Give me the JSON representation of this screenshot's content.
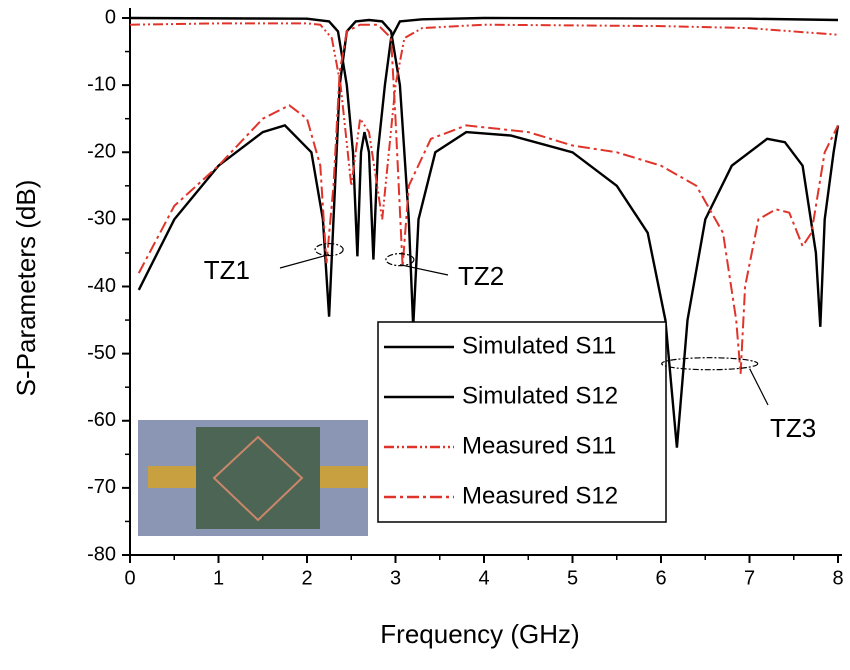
{
  "chart_data": {
    "type": "line",
    "xlabel": "Frequency (GHz)",
    "ylabel": "S-Parameters (dB)",
    "xlim": [
      0,
      8
    ],
    "xticks": [
      0,
      1,
      2,
      3,
      4,
      5,
      6,
      7,
      8
    ],
    "ylim": [
      -80,
      0
    ],
    "yticks": [
      0,
      -10,
      -20,
      -30,
      -40,
      -50,
      -60,
      -70,
      -80
    ],
    "series": [
      {
        "name": "Simulated S11",
        "color": "#000000",
        "dash": "solid",
        "x": [
          0,
          2,
          2.25,
          2.35,
          2.45,
          2.52,
          2.57,
          2.61,
          2.65,
          2.7,
          2.75,
          2.8,
          2.88,
          2.95,
          3.05,
          3.3,
          4,
          7,
          8
        ],
        "values": [
          0,
          -0.1,
          -0.5,
          -2,
          -10,
          -20,
          -35.5,
          -20,
          -17,
          -20,
          -36,
          -20,
          -10,
          -3,
          -0.5,
          -0.2,
          0,
          -0.1,
          -0.3
        ]
      },
      {
        "name": "Simulated S12",
        "color": "#000000",
        "dash": "solid",
        "x": [
          0.1,
          0.5,
          1,
          1.5,
          1.75,
          2.05,
          2.18,
          2.25,
          2.3,
          2.37,
          2.45,
          2.55,
          2.7,
          2.85,
          2.95,
          3.05,
          3.15,
          3.2,
          3.26,
          3.45,
          3.8,
          4.3,
          5,
          5.5,
          5.85,
          6.05,
          6.18,
          6.3,
          6.5,
          6.8,
          7.2,
          7.4,
          7.6,
          7.75,
          7.8,
          7.85,
          7.95,
          8
        ],
        "values": [
          -40.5,
          -30,
          -22,
          -17,
          -16,
          -20,
          -30,
          -44.5,
          -30,
          -10,
          -2,
          -0.5,
          -0.3,
          -0.5,
          -2,
          -10,
          -30,
          -46,
          -30,
          -20,
          -17,
          -17.5,
          -20,
          -25,
          -32,
          -45,
          -64,
          -45,
          -30,
          -22,
          -18,
          -18.5,
          -22,
          -35,
          -46,
          -30,
          -20,
          -16
        ]
      },
      {
        "name": "Measured S11",
        "color": "#e0342a",
        "dash": "dash-dot-dot",
        "x": [
          0,
          1,
          2,
          2.15,
          2.28,
          2.38,
          2.5,
          2.6,
          2.7,
          2.85,
          3.0,
          3.1,
          3.3,
          4,
          6,
          7,
          8
        ],
        "values": [
          -1,
          -0.8,
          -0.8,
          -1,
          -3,
          -10,
          -25,
          -15,
          -17,
          -30,
          -10,
          -3,
          -1.5,
          -1,
          -1.2,
          -1.5,
          -2.5
        ]
      },
      {
        "name": "Measured S12",
        "color": "#e0342a",
        "dash": "dash-dot",
        "x": [
          0.1,
          0.5,
          1,
          1.5,
          1.8,
          2.0,
          2.15,
          2.22,
          2.3,
          2.37,
          2.45,
          2.6,
          2.8,
          2.95,
          3.0,
          3.08,
          3.15,
          3.4,
          3.8,
          4.5,
          5,
          5.5,
          6,
          6.4,
          6.7,
          6.85,
          6.9,
          6.95,
          7.1,
          7.3,
          7.45,
          7.6,
          7.7,
          7.85,
          8
        ],
        "values": [
          -38,
          -28,
          -22,
          -15,
          -13,
          -15,
          -22,
          -36.5,
          -25,
          -8,
          -2,
          -1,
          -1,
          -3,
          -15,
          -37,
          -25,
          -18,
          -16,
          -17,
          -19,
          -20,
          -22,
          -25,
          -32,
          -45,
          -53,
          -40,
          -30,
          -28.5,
          -29,
          -34,
          -32,
          -20,
          -16
        ]
      }
    ],
    "annotations": [
      "TZ1",
      "TZ2",
      "TZ3"
    ]
  }
}
